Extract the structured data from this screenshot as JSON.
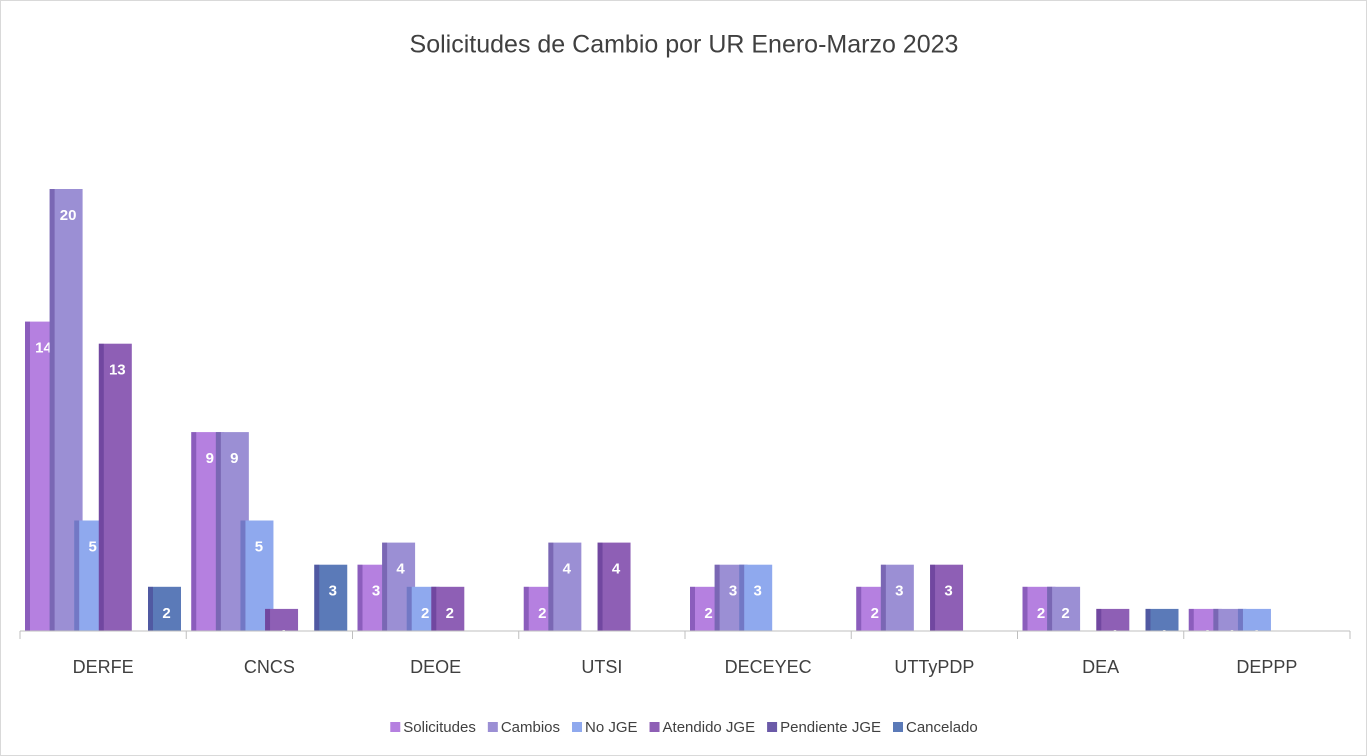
{
  "chart_data": {
    "type": "bar",
    "title": "Solicitudes de Cambio por UR Enero-Marzo 2023",
    "categories": [
      "DERFE",
      "CNCS",
      "DEOE",
      "UTSI",
      "DECEYEC",
      "UTTyPDP",
      "DEA",
      "DEPPP"
    ],
    "series": [
      {
        "name": "Solicitudes",
        "color": "#b580e0",
        "values": [
          14,
          9,
          3,
          2,
          2,
          2,
          2,
          1
        ]
      },
      {
        "name": "Cambios",
        "color": "#9b8fd4",
        "values": [
          20,
          9,
          4,
          4,
          3,
          3,
          2,
          1
        ]
      },
      {
        "name": "No JGE",
        "color": "#8fa9ee",
        "values": [
          5,
          5,
          2,
          null,
          3,
          null,
          null,
          1
        ]
      },
      {
        "name": "Atendido JGE",
        "color": "#8e5fb5",
        "values": [
          13,
          1,
          2,
          4,
          null,
          3,
          1,
          null
        ]
      },
      {
        "name": "Pendiente JGE",
        "color": "#6b5aa8",
        "values": [
          null,
          null,
          null,
          null,
          null,
          null,
          null,
          null
        ]
      },
      {
        "name": "Cancelado",
        "color": "#5b7ab8",
        "values": [
          2,
          3,
          null,
          null,
          null,
          null,
          1,
          null
        ]
      }
    ],
    "ylim": [
      0,
      20
    ],
    "legend": "bottom"
  }
}
